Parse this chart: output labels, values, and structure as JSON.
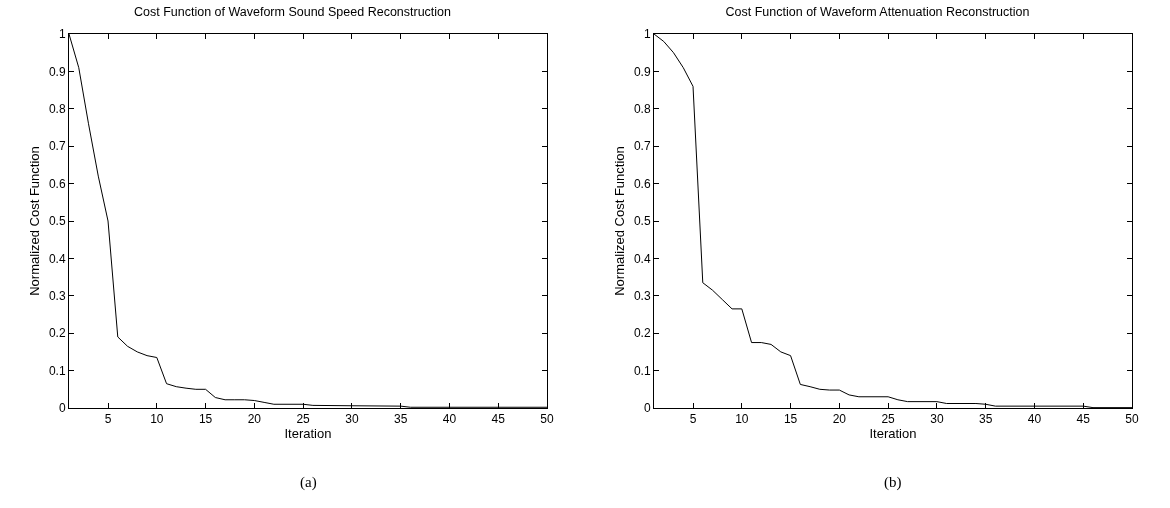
{
  "chart_data": [
    {
      "type": "line",
      "title": "Cost Function of Waveform Sound Speed Reconstruction",
      "xlabel": "Iteration",
      "ylabel": "Normalized Cost Function",
      "annotations": [
        "(a)"
      ],
      "x": [
        1,
        2,
        3,
        4,
        5,
        6,
        7,
        8,
        9,
        10,
        11,
        12,
        13,
        14,
        15,
        16,
        17,
        18,
        19,
        20,
        21,
        22,
        25,
        26,
        30,
        35,
        36,
        40,
        45,
        50
      ],
      "series": [
        {
          "color": "#000000",
          "values": [
            1.0,
            0.91,
            0.76,
            0.62,
            0.5,
            0.19,
            0.165,
            0.15,
            0.14,
            0.135,
            0.065,
            0.057,
            0.053,
            0.05,
            0.05,
            0.028,
            0.022,
            0.022,
            0.022,
            0.02,
            0.015,
            0.01,
            0.01,
            0.007,
            0.006,
            0.005,
            0.002,
            0.002,
            0.002,
            0.002
          ]
        }
      ],
      "xlim": [
        1,
        50
      ],
      "xticks": [
        5,
        10,
        15,
        20,
        25,
        30,
        35,
        40,
        45,
        50
      ],
      "ylim": [
        0,
        1
      ],
      "yticks": [
        0,
        0.1,
        0.2,
        0.3,
        0.4,
        0.5,
        0.6,
        0.7,
        0.8,
        0.9,
        1
      ],
      "marker": "none",
      "line_style": "solid"
    },
    {
      "type": "line",
      "title": "Cost Function of Waveform Attenuation Reconstruction",
      "xlabel": "Iteration",
      "ylabel": "Normalized Cost Function",
      "annotations": [
        "(b)"
      ],
      "x": [
        1,
        2,
        3,
        4,
        5,
        6,
        7,
        8,
        9,
        10,
        11,
        12,
        13,
        14,
        15,
        16,
        17,
        18,
        19,
        20,
        21,
        22,
        25,
        26,
        27,
        30,
        31,
        34,
        35,
        36,
        45,
        46,
        50
      ],
      "series": [
        {
          "color": "#000000",
          "values": [
            1.0,
            0.98,
            0.95,
            0.91,
            0.86,
            0.335,
            0.315,
            0.29,
            0.265,
            0.265,
            0.175,
            0.175,
            0.17,
            0.15,
            0.14,
            0.063,
            0.057,
            0.05,
            0.048,
            0.048,
            0.035,
            0.03,
            0.03,
            0.022,
            0.017,
            0.017,
            0.012,
            0.012,
            0.01,
            0.005,
            0.005,
            0.001,
            0.001
          ]
        }
      ],
      "xlim": [
        1,
        50
      ],
      "xticks": [
        5,
        10,
        15,
        20,
        25,
        30,
        35,
        40,
        45,
        50
      ],
      "ylim": [
        0,
        1
      ],
      "yticks": [
        0,
        0.1,
        0.2,
        0.3,
        0.4,
        0.5,
        0.6,
        0.7,
        0.8,
        0.9,
        1
      ],
      "marker": "none",
      "line_style": "solid"
    }
  ]
}
